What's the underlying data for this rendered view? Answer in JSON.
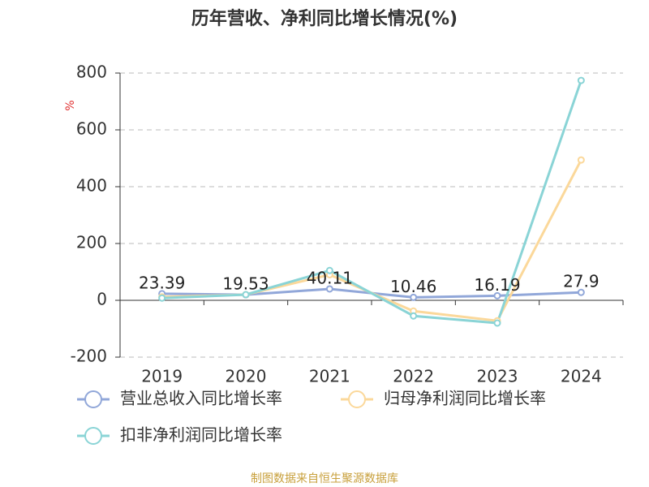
{
  "chart_data": {
    "type": "line",
    "title": "历年营收、净利同比增长情况(%)",
    "y_label": "%",
    "categories": [
      "2019",
      "2020",
      "2021",
      "2022",
      "2023",
      "2024"
    ],
    "series": [
      {
        "name": "营业总收入同比增长率",
        "color": "#91a7d9",
        "values": [
          23.39,
          19.53,
          40.11,
          10.46,
          16.19,
          27.9
        ],
        "data_labels": true
      },
      {
        "name": "归母净利润同比增长率",
        "color": "#fbd89a",
        "values": [
          12,
          20,
          90,
          -38,
          -72,
          494
        ]
      },
      {
        "name": "扣非净利润同比增长率",
        "color": "#8ad4d6",
        "values": [
          8,
          20,
          105,
          -55,
          -80,
          774
        ]
      }
    ],
    "ylim": [
      -200,
      800
    ],
    "yticks": [
      -200,
      0,
      200,
      400,
      600,
      800
    ],
    "grid": true,
    "source": "制图数据来自恒生聚源数据库"
  }
}
